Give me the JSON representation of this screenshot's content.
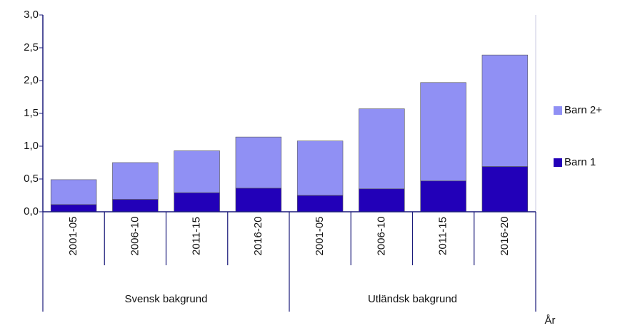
{
  "chart_data": {
    "type": "stacked_bar",
    "categories": [
      "2001-05",
      "2006-10",
      "2011-15",
      "2016-20",
      "2001-05",
      "2006-10",
      "2011-15",
      "2016-20"
    ],
    "groups": [
      "Svensk bakgrund",
      "Utländsk bakgrund"
    ],
    "xlabel": "År",
    "series": [
      {
        "name": "Barn 1",
        "color": "#2200b8",
        "values": [
          0.11,
          0.19,
          0.29,
          0.36,
          0.25,
          0.35,
          0.47,
          0.69
        ]
      },
      {
        "name": "Barn 2+",
        "color": "#9090f4",
        "values": [
          0.38,
          0.56,
          0.64,
          0.78,
          0.83,
          1.22,
          1.5,
          1.7
        ]
      }
    ],
    "ylim": [
      0,
      3
    ],
    "yticks": [
      {
        "value": 0,
        "label": "0,0"
      },
      {
        "value": 0.5,
        "label": "0,5"
      },
      {
        "value": 1,
        "label": "1,0"
      },
      {
        "value": 1.5,
        "label": "1,5"
      },
      {
        "value": 2,
        "label": "2,0"
      },
      {
        "value": 2.5,
        "label": "2,5"
      },
      {
        "value": 3,
        "label": "3,0"
      }
    ],
    "legend": "right"
  }
}
